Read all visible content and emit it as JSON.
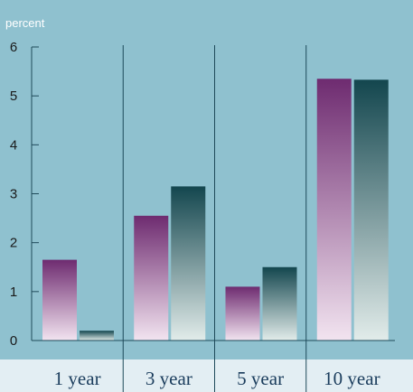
{
  "chart_data": {
    "type": "bar",
    "ylabel": "percent",
    "categories": [
      "1 year",
      "3 year",
      "5 year",
      "10 year"
    ],
    "series": [
      {
        "values": [
          1.65,
          2.55,
          1.1,
          5.35
        ]
      },
      {
        "values": [
          0.2,
          3.15,
          1.5,
          5.33
        ]
      }
    ],
    "ylim": [
      0,
      6
    ],
    "yticks": [
      "0",
      "1",
      "2",
      "3",
      "4",
      "5",
      "6"
    ],
    "colors": {
      "plot_background": "#8fc1cf",
      "label_band": "#e3eef3",
      "series_1_top": "#6e2b70",
      "series_1_bottom": "#f2e4f0",
      "series_2_top": "#13464e",
      "series_2_bottom": "#e2ecea",
      "axis": "#1f4a5a"
    },
    "grid": false,
    "legend": "none"
  }
}
